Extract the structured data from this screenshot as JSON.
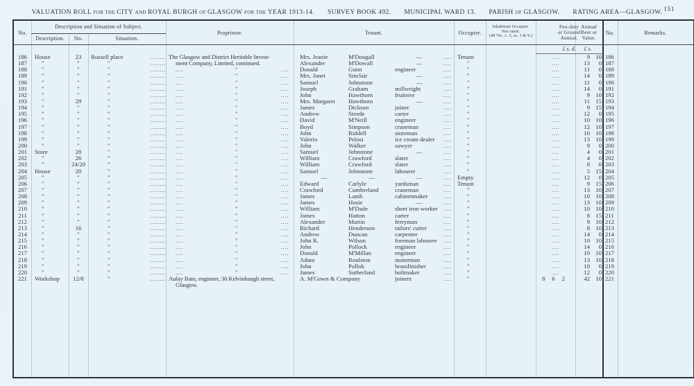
{
  "page": {
    "page_number": "151",
    "title_segments": [
      {
        "text": "VALUATION ROLL",
        "size": "lg",
        "gap": false
      },
      {
        "text": "FOR THE",
        "size": "sm",
        "gap": false
      },
      {
        "text": "CITY",
        "size": "lg",
        "gap": false
      },
      {
        "text": "AND",
        "size": "sm",
        "gap": false
      },
      {
        "text": "ROYAL BURGH",
        "size": "lg",
        "gap": false
      },
      {
        "text": "OF",
        "size": "sm",
        "gap": false
      },
      {
        "text": "GLASGOW",
        "size": "lg",
        "gap": false
      },
      {
        "text": "FOR THE",
        "size": "sm",
        "gap": false
      },
      {
        "text": "YEAR 1913-14.",
        "size": "lg",
        "gap": false
      },
      {
        "text": "SURVEY BOOK 492.",
        "size": "lg",
        "gap": true
      },
      {
        "text": "MUNICIPAL WARD 13.",
        "size": "lg",
        "gap": true
      },
      {
        "text": "PARISH",
        "size": "lg",
        "gap": true
      },
      {
        "text": "OF",
        "size": "sm",
        "gap": false
      },
      {
        "text": "GLASGOW.",
        "size": "lg",
        "gap": false
      },
      {
        "text": "RATING AREA—GLASGOW.",
        "size": "lg",
        "gap": true
      }
    ]
  },
  "table": {
    "headers": {
      "no_left": "No.",
      "desc_section": "Description and Situation of Subject.",
      "description": "Description.",
      "num": "No.",
      "situation": "Situation.",
      "proprietor": "Proprietor.",
      "tenant": "Tenant.",
      "occupier": "Occupier.",
      "inhab1": "Inhabitant Occupier.",
      "inhab2": "Not rated.",
      "inhab3": "(48 Vic. c. 3, ss. 3 & 9.)",
      "feu1": "Feu-duty",
      "feu2": "or Ground",
      "feu3": "Annual.",
      "rent1": "Annual",
      "rent2": "Rent or",
      "rent3": "Value.",
      "no_right": "No.",
      "remarks": "Remarks."
    },
    "money_units": {
      "feu": "£  s.  d.",
      "rent": "£  s."
    },
    "ditto": "″",
    "dots": "....",
    "proprietor_text": {
      "l1": "The Glasgow and District Heritable Invest-",
      "l2": "ment Company, Limited, continued.",
      "a1": "Aulay Bain, engineer, 30 Kelvinhaugh street,",
      "a2": "Glasgow."
    },
    "rows": [
      {
        "n": "186",
        "d": "House",
        "m": "23",
        "s": "Russell place",
        "p": "L1",
        "t1": "Mrs. Jeanie",
        "t2": "M'Dougall",
        "t3": "—",
        "o": "Tenant",
        "f": null,
        "rl": "9",
        "rs": "10"
      },
      {
        "n": "187",
        "d": "″",
        "m": "″",
        "s": "″",
        "p": "L2",
        "t1": "Alexander",
        "t2": "M'Dowall",
        "t3": "—",
        "o": "″",
        "f": null,
        "rl": "13",
        "rs": "0"
      },
      {
        "n": "188",
        "d": "″",
        "m": "″",
        "s": "″",
        "p": "D",
        "t1": "Donald",
        "t2": "Gunn",
        "t3": "engineer",
        "o": "″",
        "f": null,
        "rl": "11",
        "rs": "0"
      },
      {
        "n": "189",
        "d": "″",
        "m": "″",
        "s": "″",
        "p": "D",
        "t1": "Mrs. Janet",
        "t2": "Sinclair",
        "t3": "—",
        "o": "″",
        "f": null,
        "rl": "14",
        "rs": "0"
      },
      {
        "n": "190",
        "d": "″",
        "m": "″",
        "s": "″",
        "p": "D",
        "t1": "Samuel",
        "t2": "Johnstone",
        "t3": "—",
        "o": "″",
        "f": null,
        "rl": "11",
        "rs": "0"
      },
      {
        "n": "191",
        "d": "″",
        "m": "″",
        "s": "″",
        "p": "D",
        "t1": "Joseph",
        "t2": "Graham",
        "t3": "millwright",
        "o": "″",
        "f": null,
        "rl": "14",
        "rs": "0"
      },
      {
        "n": "192",
        "d": "″",
        "m": "″",
        "s": "″",
        "p": "D",
        "t1": "John",
        "t2": "Hawthorn",
        "t3": "fruiterer",
        "o": "″",
        "f": null,
        "rl": "9",
        "rs": "10"
      },
      {
        "n": "193",
        "d": "″",
        "m": "29",
        "s": "″",
        "p": "D",
        "t1": "Mrs. Margaret",
        "t2": "Hawthorn",
        "t3": "—",
        "o": "″",
        "f": null,
        "rl": "11",
        "rs": "15"
      },
      {
        "n": "194",
        "d": "″",
        "m": "″",
        "s": "″",
        "p": "D",
        "t1": "James",
        "t2": "Dickson",
        "t3": "joiner",
        "o": "″",
        "f": null,
        "rl": "9",
        "rs": "15"
      },
      {
        "n": "195",
        "d": "″",
        "m": "″",
        "s": "″",
        "p": "D",
        "t1": "Andrew",
        "t2": "Steede",
        "t3": "carter",
        "o": "″",
        "f": null,
        "rl": "12",
        "rs": "0"
      },
      {
        "n": "196",
        "d": "″",
        "m": "″",
        "s": "″",
        "p": "D",
        "t1": "David",
        "t2": "M'Neill",
        "t3": "engineer",
        "o": "″",
        "f": null,
        "rl": "10",
        "rs": "10"
      },
      {
        "n": "197",
        "d": "″",
        "m": "″",
        "s": "″",
        "p": "D",
        "t1": "Boyd",
        "t2": "Simpson",
        "t3": "craneman",
        "o": "″",
        "f": null,
        "rl": "12",
        "rs": "10"
      },
      {
        "n": "198",
        "d": "″",
        "m": "″",
        "s": "″",
        "p": "D",
        "t1": "John",
        "t2": "Riddell",
        "t3": "storeman",
        "o": "″",
        "f": null,
        "rl": "10",
        "rs": "10"
      },
      {
        "n": "199",
        "d": "″",
        "m": "″",
        "s": "″",
        "p": "D",
        "t1": "Valerio",
        "t2": "Pelosi",
        "t3": "ice cream dealer",
        "o": "″",
        "f": null,
        "rl": "13",
        "rs": "10"
      },
      {
        "n": "200",
        "d": "″",
        "m": "″",
        "s": "″",
        "p": "D",
        "t1": "John",
        "t2": "Walker",
        "t3": "sawyer",
        "o": "″",
        "f": null,
        "rl": "9",
        "rs": "0"
      },
      {
        "n": "201",
        "d": "Store",
        "m": "28",
        "s": "″",
        "p": "D",
        "t1": "Samuel",
        "t2": "Johnstone",
        "t3": "—",
        "o": "″",
        "f": null,
        "rl": "4",
        "rs": "0"
      },
      {
        "n": "202",
        "d": "″",
        "m": "26",
        "s": "″",
        "p": "D",
        "t1": "William",
        "t2": "Crawford",
        "t3": "slater",
        "o": "″",
        "f": null,
        "rl": "4",
        "rs": "0"
      },
      {
        "n": "203",
        "d": "″",
        "m": "24/20",
        "s": "″",
        "p": "D",
        "t1": "William",
        "t2": "Crawford",
        "t3": "slater",
        "o": "″",
        "f": null,
        "rl": "8",
        "rs": "0"
      },
      {
        "n": "204",
        "d": "House",
        "m": "20",
        "s": "″",
        "p": "D",
        "t1": "Samuel",
        "t2": "Johnstone",
        "t3": "labourer",
        "o": "″",
        "f": null,
        "rl": "5",
        "rs": "15"
      },
      {
        "n": "205",
        "d": "″",
        "m": "″",
        "s": "″",
        "p": "D",
        "t1": "—",
        "t2": "—",
        "t3": "—",
        "o": "Empty",
        "f": null,
        "rl": "12",
        "rs": "0"
      },
      {
        "n": "206",
        "d": "″",
        "m": "″",
        "s": "″",
        "p": "D",
        "t1": "Edward",
        "t2": "Carlyle",
        "t3": "yardsman",
        "o": "Tenant",
        "f": null,
        "rl": "9",
        "rs": "15"
      },
      {
        "n": "207",
        "d": "″",
        "m": "″",
        "s": "″",
        "p": "D",
        "t1": "Crawford",
        "t2": "Cumberland",
        "t3": "craneman",
        "o": "″",
        "f": null,
        "rl": "13",
        "rs": "10"
      },
      {
        "n": "208",
        "d": "″",
        "m": "″",
        "s": "″",
        "p": "D",
        "t1": "James",
        "t2": "Lamb",
        "t3": "cabinetmaker",
        "o": "″",
        "f": null,
        "rl": "10",
        "rs": "10"
      },
      {
        "n": "209",
        "d": "″",
        "m": "″",
        "s": "″",
        "p": "D",
        "t1": "James",
        "t2": "Hosie",
        "t3": "—",
        "o": "″",
        "f": null,
        "rl": "13",
        "rs": "10"
      },
      {
        "n": "210",
        "d": "″",
        "m": "″",
        "s": "″",
        "p": "D",
        "t1": "William",
        "t2": "M'Dade",
        "t3": "sheet iron worker",
        "o": "″",
        "f": null,
        "rl": "10",
        "rs": "10"
      },
      {
        "n": "211",
        "d": "″",
        "m": "″",
        "s": "″",
        "p": "D",
        "t1": "James",
        "t2": "Hatton",
        "t3": "carter",
        "o": "″",
        "f": null,
        "rl": "8",
        "rs": "15"
      },
      {
        "n": "212",
        "d": "″",
        "m": "″",
        "s": "″",
        "p": "D",
        "t1": "Alexander",
        "t2": "Martin",
        "t3": "ferryman",
        "o": "″",
        "f": null,
        "rl": "9",
        "rs": "10"
      },
      {
        "n": "213",
        "d": "″",
        "m": "16",
        "s": "″",
        "p": "D",
        "t1": "Richard",
        "t2": "Henderson",
        "t3": "tailors' cutter",
        "o": "″",
        "f": null,
        "rl": "8",
        "rs": "10"
      },
      {
        "n": "214",
        "d": "″",
        "m": "″",
        "s": "″",
        "p": "D",
        "t1": "Andrew",
        "t2": "Duncan",
        "t3": "carpenter",
        "o": "″",
        "f": null,
        "rl": "14",
        "rs": "0"
      },
      {
        "n": "215",
        "d": "″",
        "m": "″",
        "s": "″",
        "p": "D",
        "t1": "John R.",
        "t2": "Wilson",
        "t3": "foreman labourer",
        "o": "″",
        "f": null,
        "rl": "10",
        "rs": "10"
      },
      {
        "n": "216",
        "d": "″",
        "m": "″",
        "s": "″",
        "p": "D",
        "t1": "John",
        "t2": "Pollock",
        "t3": "engineer",
        "o": "″",
        "f": null,
        "rl": "14",
        "rs": "0"
      },
      {
        "n": "217",
        "d": "″",
        "m": "″",
        "s": "″",
        "p": "D",
        "t1": "Donald",
        "t2": "M'Millan",
        "t3": "engineer",
        "o": "″",
        "f": null,
        "rl": "10",
        "rs": "10"
      },
      {
        "n": "218",
        "d": "″",
        "m": "″",
        "s": "″",
        "p": "D",
        "t1": "Adam",
        "t2": "Roulston",
        "t3": "motorman",
        "o": "″",
        "f": null,
        "rl": "13",
        "rs": "10"
      },
      {
        "n": "219",
        "d": "″",
        "m": "″",
        "s": "″",
        "p": "D",
        "t1": "John",
        "t2": "Pollok",
        "t3": "brassfinisher",
        "o": "″",
        "f": null,
        "rl": "10",
        "rs": "0"
      },
      {
        "n": "220",
        "d": "″",
        "m": "″",
        "s": "″",
        "p": "D",
        "t1": "James",
        "t2": "Sutherland",
        "t3": "boltmaker",
        "o": "″",
        "f": null,
        "rl": "12",
        "rs": "0"
      },
      {
        "n": "221",
        "d": "Workshop",
        "m": "12/8",
        "s": "″",
        "p": "A",
        "t1": "A. M'Gown & Company",
        "t2": "",
        "t3": "joiners",
        "o": "″",
        "f": {
          "l": "8",
          "s": "6",
          "d": "2"
        },
        "rl": "42",
        "rs": "10"
      }
    ]
  }
}
